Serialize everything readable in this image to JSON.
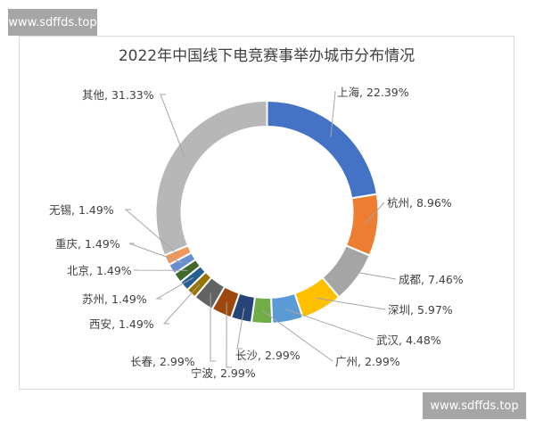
{
  "watermark": {
    "top": "www.sdffds.top",
    "bottom": "www.sdffds.top"
  },
  "chart_data": {
    "type": "pie",
    "variant": "donut",
    "title": "2022年中国线下电竞赛事举办城市分布情况",
    "categories": [
      "上海",
      "杭州",
      "成都",
      "深圳",
      "武汉",
      "广州",
      "长沙",
      "宁波",
      "长春",
      "西安",
      "苏州",
      "北京",
      "重庆",
      "无锡",
      "其他"
    ],
    "values": [
      22.39,
      8.96,
      7.46,
      5.97,
      4.48,
      2.99,
      2.99,
      2.99,
      2.99,
      1.49,
      1.49,
      1.49,
      1.49,
      1.49,
      31.33
    ],
    "colors": [
      "#4472c4",
      "#ed7d31",
      "#a5a5a5",
      "#ffc000",
      "#5b9bd5",
      "#70ad47",
      "#264478",
      "#9e480e",
      "#636363",
      "#997300",
      "#255e91",
      "#43682b",
      "#698ed0",
      "#f1975a",
      "#b7b7b7"
    ],
    "labels": [
      "上海, 22.39%",
      "杭州, 8.96%",
      "成都, 7.46%",
      "深圳, 5.97%",
      "武汉, 4.48%",
      "广州, 2.99%",
      "长沙, 2.99%",
      "宁波, 2.99%",
      "长春, 2.99%",
      "西安, 1.49%",
      "苏州, 1.49%",
      "北京, 1.49%",
      "重庆, 1.49%",
      "无锡, 1.49%",
      "其他, 31.33%"
    ],
    "unit": "%",
    "legend": "none (data labels with leader lines)",
    "start_angle": "12 o'clock, clockwise"
  }
}
